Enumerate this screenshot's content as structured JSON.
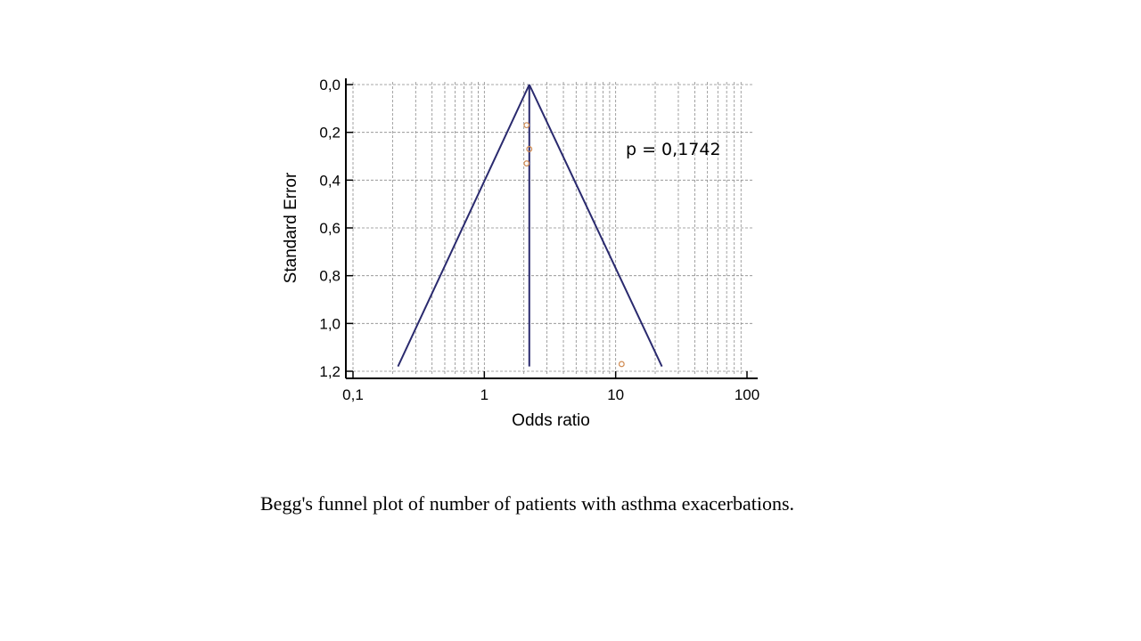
{
  "caption": "Begg's funnel plot of number of patients with asthma exacerbations.",
  "chart_data": {
    "type": "scatter",
    "title": "",
    "xlabel": "Odds ratio",
    "ylabel": "Standard Error",
    "x_scale": "log",
    "xlim": [
      0.1,
      100
    ],
    "ylim": [
      0.0,
      1.2
    ],
    "y_inverted": true,
    "x_ticks": [
      0.1,
      1,
      10,
      100
    ],
    "x_tick_labels": [
      "0,1",
      "1",
      "10",
      "100"
    ],
    "y_ticks": [
      0.0,
      0.2,
      0.4,
      0.6,
      0.8,
      1.0,
      1.2
    ],
    "y_tick_labels": [
      "0,0",
      "0,2",
      "0,4",
      "0,6",
      "0,8",
      "1,0",
      "1,2"
    ],
    "grid": true,
    "annotation": "p = 0,1742",
    "pooled_estimate": 2.2,
    "funnel_lines": [
      {
        "x": [
          2.2,
          0.22
        ],
        "y": [
          0.0,
          1.18
        ]
      },
      {
        "x": [
          2.2,
          22.5
        ],
        "y": [
          0.0,
          1.18
        ]
      }
    ],
    "pooled_line": {
      "x": [
        2.2,
        2.2
      ],
      "y": [
        0.0,
        1.18
      ]
    },
    "points": [
      {
        "x": 2.1,
        "y": 0.17
      },
      {
        "x": 2.2,
        "y": 0.27
      },
      {
        "x": 2.1,
        "y": 0.33
      },
      {
        "x": 11.1,
        "y": 1.17
      }
    ],
    "colors": {
      "lines": "#2a2a6e",
      "points": "#d08a50",
      "grid": "#8a8a8a",
      "axes": "#000000"
    }
  }
}
